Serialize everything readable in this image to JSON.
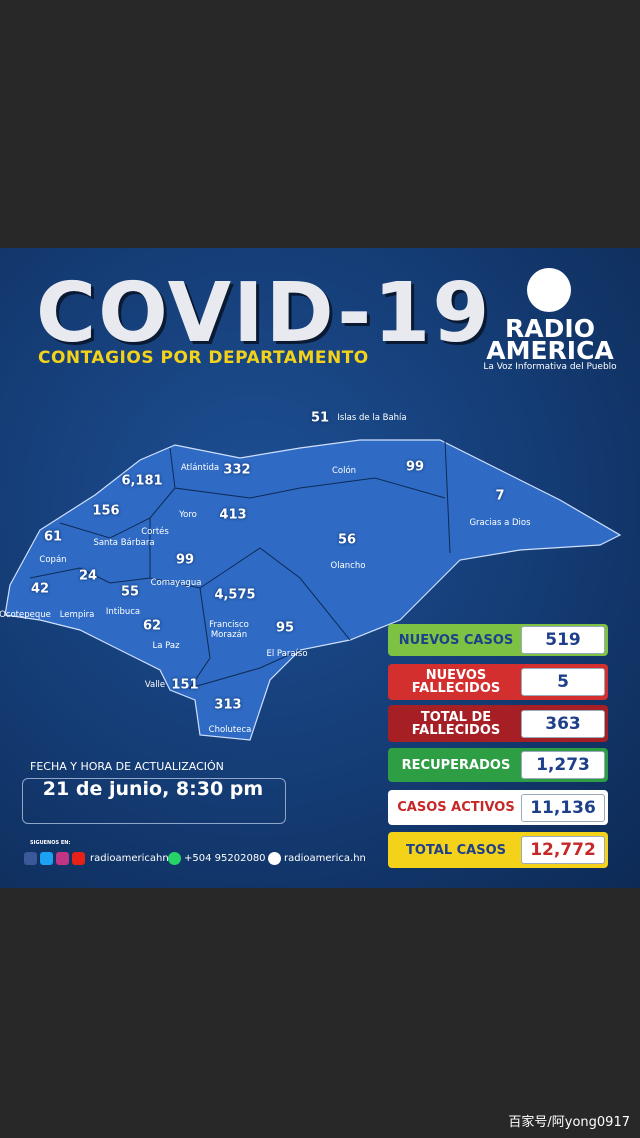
{
  "header": {
    "title": "COVID-19",
    "subtitle": "CONTAGIOS POR DEPARTAMENTO"
  },
  "brand": {
    "name_line1": "RADIO",
    "name_line2": "AMERICA",
    "tagline": "La Voz Informativa del Pueblo"
  },
  "departments": [
    {
      "name": "Islas de la Bahía",
      "cases": "51"
    },
    {
      "name": "Atlántida",
      "cases": "332"
    },
    {
      "name": "Colón",
      "cases": "99"
    },
    {
      "name": "Gracias a Dios",
      "cases": "7"
    },
    {
      "name": "Cortés",
      "cases": "6,181"
    },
    {
      "name": "Yoro",
      "cases": "413"
    },
    {
      "name": "Olancho",
      "cases": "56"
    },
    {
      "name": "Santa Bárbara",
      "cases": "156"
    },
    {
      "name": "Copán",
      "cases": "61"
    },
    {
      "name": "Comayagua",
      "cases": "99"
    },
    {
      "name": "Ocotepeque",
      "cases": "42"
    },
    {
      "name": "Lempira",
      "cases": "24"
    },
    {
      "name": "Intibuca",
      "cases": "55"
    },
    {
      "name": "Francisco Morazán",
      "cases": "4,575"
    },
    {
      "name": "La Paz",
      "cases": "62"
    },
    {
      "name": "El Paraíso",
      "cases": "95"
    },
    {
      "name": "Valle",
      "cases": "151"
    },
    {
      "name": "Choluteca",
      "cases": "313"
    }
  ],
  "summary": [
    {
      "label": "NUEVOS CASOS",
      "value": "519"
    },
    {
      "label": "NUEVOS FALLECIDOS",
      "value": "5"
    },
    {
      "label": "TOTAL DE FALLECIDOS",
      "value": "363"
    },
    {
      "label": "RECUPERADOS",
      "value": "1,273"
    },
    {
      "label": "CASOS ACTIVOS",
      "value": "11,136"
    },
    {
      "label": "TOTAL CASOS",
      "value": "12,772"
    }
  ],
  "update": {
    "label": "FECHA Y HORA DE ACTUALIZACIÓN",
    "datetime": "21 de junio, 8:30 pm"
  },
  "social": {
    "follow": "SIGUENOS EN:",
    "handle": "radioamericahn",
    "phone": "+504  95202080",
    "site": "radioamerica.hn"
  },
  "watermark": "百家号/阿yong0917"
}
